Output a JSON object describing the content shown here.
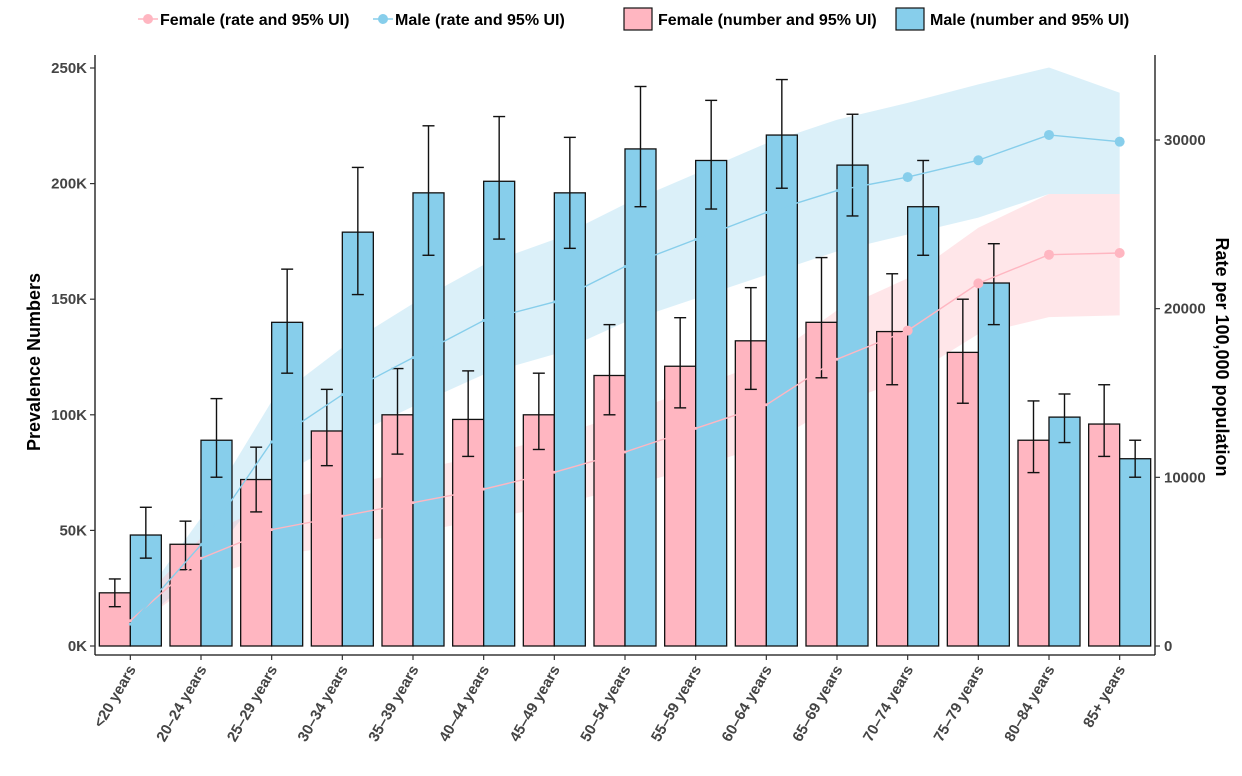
{
  "chart_data": {
    "type": "bar",
    "categories": [
      "<20 years",
      "20–24 years",
      "25–29 years",
      "30–34 years",
      "35–39 years",
      "40–44 years",
      "45–49 years",
      "50–54 years",
      "55–59 years",
      "60–64 years",
      "65–69 years",
      "70–74 years",
      "75–79 years",
      "80–84 years",
      "85+ years"
    ],
    "left_axis": {
      "title": "Prevalence Numbers",
      "ylim": [
        0,
        250000
      ],
      "ticks": [
        0,
        50000,
        100000,
        150000,
        200000,
        250000
      ],
      "tick_labels": [
        "0K",
        "50K",
        "100K",
        "150K",
        "200K",
        "250K"
      ]
    },
    "right_axis": {
      "title": "Rate per 100,000 population",
      "ylim": [
        0,
        34000
      ],
      "ticks": [
        0,
        10000,
        20000,
        30000
      ],
      "tick_labels": [
        "0",
        "10000",
        "20000",
        "30000"
      ]
    },
    "bar_series": [
      {
        "name": "Female (number and 95% UI)",
        "color": "#FFB6C1",
        "values": [
          23000,
          44000,
          72000,
          93000,
          100000,
          98000,
          100000,
          117000,
          121000,
          132000,
          140000,
          136000,
          127000,
          89000,
          96000
        ],
        "lower": [
          17000,
          33000,
          58000,
          78000,
          83000,
          82000,
          85000,
          100000,
          103000,
          111000,
          116000,
          113000,
          105000,
          75000,
          82000
        ],
        "upper": [
          29000,
          54000,
          86000,
          111000,
          120000,
          119000,
          118000,
          139000,
          142000,
          155000,
          168000,
          161000,
          150000,
          106000,
          113000
        ]
      },
      {
        "name": "Male (number and 95% UI)",
        "color": "#87CEEB",
        "values": [
          48000,
          89000,
          140000,
          179000,
          196000,
          201000,
          196000,
          215000,
          210000,
          221000,
          208000,
          190000,
          157000,
          99000,
          81000
        ],
        "lower": [
          38000,
          73000,
          118000,
          152000,
          169000,
          176000,
          172000,
          190000,
          189000,
          198000,
          186000,
          169000,
          139000,
          88000,
          73000
        ],
        "upper": [
          60000,
          107000,
          163000,
          207000,
          225000,
          229000,
          220000,
          242000,
          236000,
          245000,
          230000,
          210000,
          174000,
          109000,
          89000
        ]
      }
    ],
    "rate_series": [
      {
        "name": "Female (rate and 95% UI)",
        "color": "#FFB6C1",
        "values": [
          1500,
          5200,
          6900,
          7700,
          8500,
          9300,
          10300,
          11500,
          12900,
          14300,
          17000,
          18700,
          21500,
          23200,
          23300
        ],
        "lower": [
          1000,
          4000,
          5300,
          6000,
          6700,
          7500,
          8300,
          9400,
          10600,
          11900,
          14300,
          15900,
          18500,
          19500,
          19600
        ],
        "upper": [
          2000,
          6400,
          8500,
          9500,
          10400,
          11300,
          12400,
          13800,
          15300,
          16900,
          19900,
          21800,
          24800,
          26800,
          26800
        ]
      },
      {
        "name": "Male (rate and 95% UI)",
        "color": "#87CEEB",
        "values": [
          1300,
          6000,
          12100,
          14900,
          17100,
          19300,
          20400,
          22500,
          24100,
          25700,
          27000,
          27800,
          28800,
          30300,
          29900
        ],
        "lower": [
          800,
          4500,
          9800,
          12200,
          14200,
          16100,
          17300,
          19200,
          20600,
          22000,
          23400,
          24400,
          25400,
          26800,
          26800
        ],
        "upper": [
          1800,
          7600,
          14500,
          17700,
          20300,
          22600,
          24100,
          26200,
          28000,
          29800,
          31200,
          32200,
          33300,
          34300,
          32800
        ]
      }
    ],
    "legend": {
      "placement": "top",
      "items": [
        {
          "label": "Female (rate and 95% UI)",
          "kind": "point",
          "color": "#FFB6C1"
        },
        {
          "label": "Male (rate and 95% UI)",
          "kind": "point",
          "color": "#87CEEB"
        },
        {
          "label": "Female (number and 95% UI)",
          "kind": "box",
          "color": "#FFB6C1"
        },
        {
          "label": "Male (number and 95% UI)",
          "kind": "box",
          "color": "#87CEEB"
        }
      ]
    },
    "grid": false
  }
}
